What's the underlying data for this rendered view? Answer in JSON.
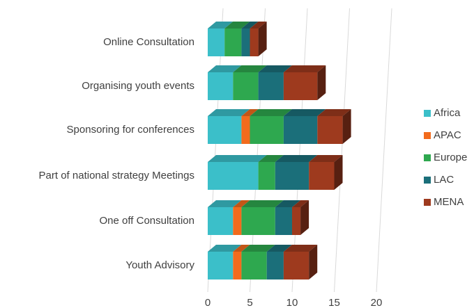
{
  "chart_data": {
    "type": "bar",
    "orientation": "horizontal",
    "stacked": true,
    "three_d": true,
    "categories": [
      "Online Consultation",
      "Organising youth events",
      "Sponsoring for conferences",
      "Part of national strategy Meetings",
      "One off Consultation",
      "Youth Advisory"
    ],
    "series": [
      {
        "name": "Africa",
        "color": "#3bbfc9",
        "values": [
          2,
          3,
          4,
          6,
          3,
          3
        ]
      },
      {
        "name": "APAC",
        "color": "#f26b1d",
        "values": [
          0,
          0,
          1,
          0,
          1,
          1
        ]
      },
      {
        "name": "Europe",
        "color": "#2ea84f",
        "values": [
          2,
          3,
          4,
          2,
          4,
          3
        ]
      },
      {
        "name": "LAC",
        "color": "#1b6f7a",
        "values": [
          1,
          3,
          4,
          4,
          2,
          2
        ]
      },
      {
        "name": "MENA",
        "color": "#9e3a1e",
        "values": [
          1,
          4,
          3,
          3,
          1,
          3
        ]
      }
    ],
    "xlim": [
      0,
      20
    ],
    "xticks": [
      0,
      5,
      10,
      15,
      20
    ],
    "grid": true,
    "legend": "right"
  }
}
